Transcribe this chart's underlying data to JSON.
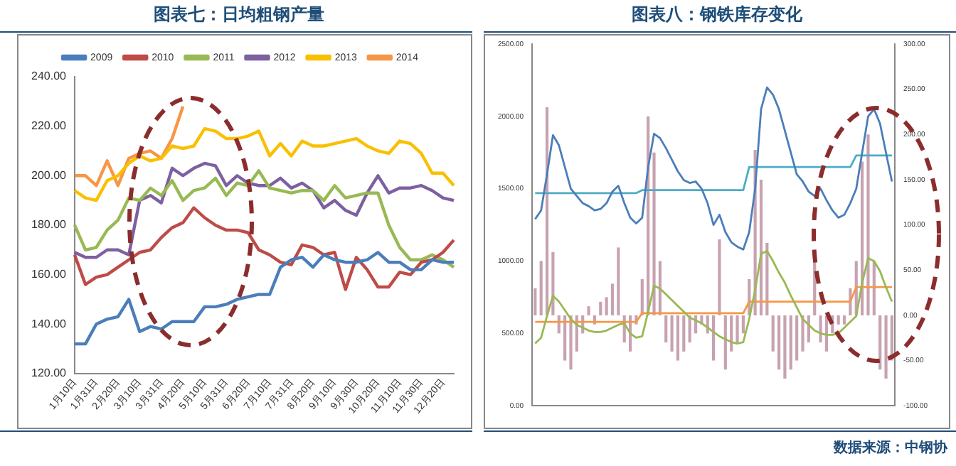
{
  "chart_data": [
    {
      "type": "line",
      "title": "图表七：日均粗钢产量",
      "categories": [
        "1月10日",
        null,
        "1月31日",
        null,
        "2月20日",
        null,
        "3月10日",
        null,
        "3月31日",
        null,
        "4月20日",
        null,
        "5月10日",
        null,
        "5月31日",
        null,
        "6月20日",
        null,
        "7月10日",
        null,
        "7月31日",
        null,
        "8月20日",
        null,
        "9月10日",
        null,
        "9月30日",
        null,
        "10月20日",
        null,
        "11月10日",
        null,
        "11月30日",
        null,
        "12月20日",
        null
      ],
      "series": [
        {
          "name": "2009",
          "color": "#4a7ebb",
          "values": [
            132,
            132,
            140,
            142,
            143,
            150,
            137,
            139,
            138,
            141,
            141,
            141,
            147,
            147,
            148,
            150,
            151,
            152,
            152,
            163,
            166,
            167,
            163,
            168,
            166,
            165,
            165,
            166,
            169,
            165,
            165,
            162,
            162,
            166,
            165,
            165
          ]
        },
        {
          "name": "2010",
          "color": "#be4b48",
          "values": [
            168,
            156,
            159,
            160,
            163,
            166,
            169,
            170,
            175,
            179,
            181,
            187,
            183,
            180,
            178,
            178,
            177,
            170,
            168,
            165,
            164,
            172,
            171,
            168,
            169,
            154,
            167,
            162,
            155,
            155,
            161,
            160,
            165,
            166,
            169,
            174
          ]
        },
        {
          "name": "2011",
          "color": "#98b954",
          "values": [
            180,
            170,
            171,
            178,
            182,
            191,
            190,
            195,
            192,
            198,
            190,
            194,
            195,
            199,
            192,
            197,
            196,
            202,
            195,
            194,
            193,
            194,
            194,
            190,
            196,
            191,
            192,
            193,
            193,
            180,
            171,
            166,
            166,
            168,
            166,
            163
          ]
        },
        {
          "name": "2012",
          "color": "#7d60a0",
          "values": [
            169,
            167,
            167,
            170,
            170,
            168,
            190,
            192,
            189,
            203,
            200,
            203,
            205,
            204,
            196,
            200,
            197,
            196,
            196,
            199,
            195,
            197,
            194,
            187,
            190,
            186,
            184,
            193,
            200,
            193,
            195,
            195,
            196,
            194,
            191,
            190
          ]
        },
        {
          "name": "2013",
          "color": "#f9c000",
          "values": [
            194,
            191,
            190,
            198,
            200,
            205,
            208,
            206,
            207,
            212,
            211,
            212,
            219,
            218,
            215,
            215,
            216,
            218,
            208,
            213,
            208,
            214,
            212,
            212,
            213,
            214,
            215,
            212,
            210,
            209,
            214,
            213,
            209,
            201,
            201,
            196
          ]
        },
        {
          "name": "2014",
          "color": "#f79646",
          "values": [
            200,
            200,
            196,
            206,
            196,
            207,
            209,
            210,
            207,
            215,
            228,
            null,
            null,
            null,
            null,
            null,
            null,
            null,
            null,
            null,
            null,
            null,
            null,
            null,
            null,
            null,
            null,
            null,
            null,
            null,
            null,
            null,
            null,
            null,
            null,
            null
          ]
        }
      ],
      "ylim": [
        120,
        240
      ],
      "yticks": [
        {
          "value": 120,
          "label": "120.00"
        },
        {
          "value": 140,
          "label": "140.00"
        },
        {
          "value": 160,
          "label": "160.00"
        },
        {
          "value": 180,
          "label": "180.00"
        },
        {
          "value": 200,
          "label": "200.00"
        },
        {
          "value": 220,
          "label": "220.00"
        },
        {
          "value": 240,
          "label": "240.00"
        }
      ],
      "legend": "top",
      "marker": "none"
    },
    {
      "type": "line",
      "title": "图表八：钢铁库存变化",
      "annotations": [
        "数据来源：中钢协"
      ],
      "categories": [
        null,
        null,
        null,
        null,
        null,
        null,
        null,
        null,
        null,
        null,
        null,
        null,
        null,
        null,
        null,
        null,
        null,
        null,
        null,
        null,
        null,
        null,
        null,
        null,
        null,
        null,
        null,
        null,
        null,
        null,
        null,
        null,
        null,
        null,
        null,
        null,
        null,
        null,
        null,
        null,
        null,
        null,
        null,
        null,
        null,
        null,
        null,
        null,
        null,
        null,
        null,
        null,
        null,
        null,
        null,
        null,
        null,
        null,
        null,
        null,
        null
      ],
      "series": [
        {
          "type": "bar",
          "axis": "y2",
          "color": "#c8a2b0",
          "values": [
            30,
            60,
            230,
            70,
            -20,
            -50,
            -60,
            -40,
            -20,
            10,
            -10,
            15,
            20,
            35,
            75,
            -30,
            -40,
            -10,
            40,
            220,
            180,
            60,
            -30,
            -40,
            -50,
            -40,
            -30,
            -20,
            -10,
            -20,
            -50,
            84,
            -60,
            -40,
            -30,
            -20,
            40,
            183,
            150,
            80,
            -40,
            -60,
            -70,
            -60,
            -50,
            -40,
            -30,
            60,
            -30,
            -40,
            -20,
            -10,
            -10,
            30,
            60,
            170,
            200,
            60,
            -60,
            -70,
            -50
          ]
        },
        {
          "type": "line",
          "color": "#4a7ebb",
          "values": [
            1290,
            1350,
            1600,
            1870,
            1800,
            1650,
            1500,
            1450,
            1400,
            1380,
            1350,
            1360,
            1400,
            1480,
            1520,
            1400,
            1300,
            1260,
            1300,
            1650,
            1880,
            1850,
            1780,
            1700,
            1620,
            1560,
            1540,
            1550,
            1500,
            1400,
            1250,
            1320,
            1200,
            1130,
            1100,
            1080,
            1200,
            1500,
            2050,
            2200,
            2150,
            2050,
            1900,
            1750,
            1600,
            1550,
            1480,
            1450,
            1500,
            1420,
            1350,
            1300,
            1320,
            1400,
            1500,
            1750,
            2000,
            2050,
            1950,
            1750,
            1550
          ]
        },
        {
          "type": "line",
          "color": "#98b954",
          "values": [
            430,
            470,
            620,
            760,
            720,
            660,
            600,
            560,
            540,
            520,
            510,
            510,
            520,
            540,
            560,
            570,
            500,
            470,
            480,
            650,
            830,
            810,
            770,
            730,
            690,
            650,
            610,
            590,
            570,
            540,
            510,
            480,
            460,
            440,
            430,
            440,
            600,
            800,
            1050,
            1070,
            1000,
            920,
            850,
            760,
            680,
            600,
            560,
            520,
            500,
            490,
            490,
            500,
            540,
            580,
            620,
            850,
            1020,
            1000,
            930,
            820,
            720
          ]
        },
        {
          "type": "line",
          "color": "#4bacc6",
          "values": [
            1470,
            1470,
            1470,
            1470,
            1470,
            1470,
            1470,
            1470,
            1470,
            1470,
            1470,
            1470,
            1470,
            1470,
            1470,
            1470,
            1470,
            1470,
            1490,
            1490,
            1490,
            1490,
            1490,
            1490,
            1490,
            1490,
            1490,
            1490,
            1490,
            1490,
            1490,
            1490,
            1490,
            1490,
            1490,
            1490,
            1650,
            1650,
            1650,
            1650,
            1650,
            1650,
            1650,
            1650,
            1650,
            1650,
            1650,
            1650,
            1650,
            1650,
            1650,
            1650,
            1650,
            1650,
            1730,
            1730,
            1730,
            1730,
            1730,
            1730,
            1730
          ]
        },
        {
          "type": "line",
          "color": "#f79646",
          "values": [
            580,
            580,
            580,
            580,
            580,
            580,
            580,
            580,
            580,
            580,
            580,
            580,
            580,
            580,
            580,
            580,
            580,
            580,
            640,
            640,
            640,
            640,
            640,
            640,
            640,
            640,
            640,
            640,
            640,
            640,
            640,
            640,
            640,
            640,
            640,
            640,
            720,
            720,
            720,
            720,
            720,
            720,
            720,
            720,
            720,
            720,
            720,
            720,
            720,
            720,
            720,
            720,
            720,
            720,
            820,
            820,
            820,
            820,
            820,
            820,
            820
          ]
        }
      ],
      "ylim": [
        0,
        2500
      ],
      "yticks": [
        {
          "value": 0,
          "label": "0.00"
        },
        {
          "value": 500,
          "label": "500.00"
        },
        {
          "value": 1000,
          "label": "1000.00"
        },
        {
          "value": 1500,
          "label": "1500.00"
        },
        {
          "value": 2000,
          "label": "2000.00"
        },
        {
          "value": 2500,
          "label": "2500.00"
        }
      ],
      "y2lim": [
        -100,
        300
      ],
      "y2ticks": [
        {
          "value": -100,
          "label": "-100.00"
        },
        {
          "value": -50,
          "label": "-50.00"
        },
        {
          "value": 0,
          "label": "0.00"
        },
        {
          "value": 50,
          "label": "50.00"
        },
        {
          "value": 100,
          "label": "100.00"
        },
        {
          "value": 150,
          "label": "150.00"
        },
        {
          "value": 200,
          "label": "200.00"
        },
        {
          "value": 250,
          "label": "250.00"
        },
        {
          "value": 300,
          "label": "300.00"
        }
      ],
      "marker": "none"
    }
  ]
}
